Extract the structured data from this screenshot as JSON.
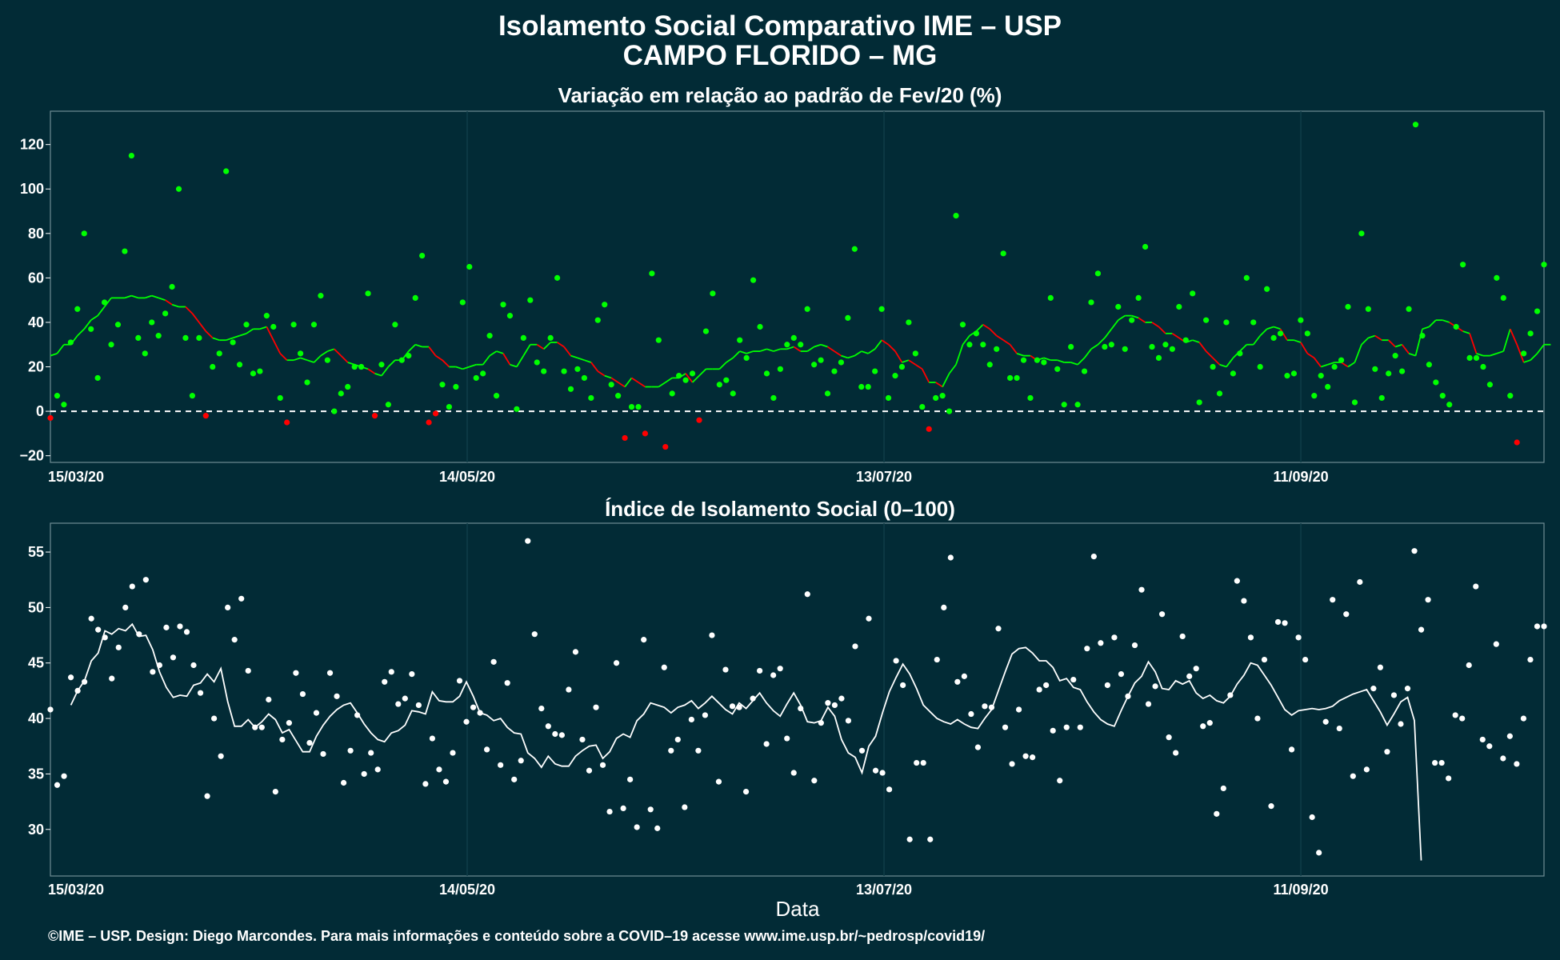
{
  "title_line1": "Isolamento Social Comparativo IME – USP",
  "title_line2": "CAMPO FLORIDO – MG",
  "xlabel": "Data",
  "footer": "©IME – USP. Design: Diego Marcondes. Para mais informações e conteúdo sobre a COVID–19 acesse www.ime.usp.br/~pedrosp/covid19/",
  "colors": {
    "background": "#022b36",
    "positive": "#00ff00",
    "negative": "#ff0000",
    "index": "#ffffff"
  },
  "chart_data": [
    {
      "type": "scatter",
      "title": "Variação em relação ao padrão de Fev/20 (%)",
      "x_start": "15/03/20",
      "x_end": "16/10/20",
      "x_ticks": [
        "15/03/20",
        "14/05/20",
        "13/07/20",
        "11/09/20"
      ],
      "ylim": [
        -23,
        135
      ],
      "y_ticks": [
        -20,
        0,
        20,
        40,
        60,
        80,
        100,
        120
      ],
      "reference_line": 0,
      "grid": true,
      "series": [
        {
          "kind": "points",
          "values": [
            -3,
            7,
            3,
            31,
            46,
            80,
            37,
            15,
            49,
            30,
            39,
            72,
            115,
            33,
            26,
            40,
            34,
            44,
            56,
            100,
            33,
            7,
            33,
            -2,
            20,
            26,
            108,
            31,
            21,
            39,
            17,
            18,
            43,
            38,
            6,
            -5,
            39,
            26,
            13,
            39,
            52,
            23,
            0,
            8,
            11,
            20,
            20,
            53,
            -2,
            21,
            3,
            39,
            23,
            25,
            51,
            70,
            -5,
            -1,
            12,
            2,
            11,
            49,
            65,
            15,
            17,
            34,
            7,
            48,
            43,
            1,
            33,
            50,
            22,
            18,
            33,
            60,
            18,
            10,
            19,
            15,
            6,
            41,
            48,
            12,
            7,
            -12,
            2,
            2,
            -10,
            62,
            32,
            -16,
            8,
            16,
            14,
            17,
            -4,
            36,
            53,
            12,
            14,
            8,
            32,
            24,
            59,
            38,
            17,
            6,
            19,
            30,
            33,
            30,
            46,
            21,
            23,
            8,
            18,
            22,
            42,
            73,
            11,
            11,
            18,
            46,
            6,
            16,
            20,
            40,
            26,
            2,
            -8,
            6,
            7,
            0,
            88,
            39,
            30,
            35,
            30,
            21,
            28,
            71,
            15,
            15,
            23,
            6,
            23,
            22,
            51,
            19,
            3,
            29,
            3,
            18,
            49,
            62,
            29,
            30,
            47,
            28,
            41,
            51,
            74,
            29,
            24,
            30,
            28,
            47,
            32,
            53,
            4,
            41,
            20,
            8,
            40,
            17,
            26,
            60,
            40,
            20,
            55,
            33,
            35,
            16,
            17,
            41,
            35,
            7,
            16,
            11,
            20,
            23,
            47,
            4,
            80,
            46,
            19,
            6,
            17,
            25,
            18,
            46,
            129,
            34,
            21,
            13,
            7,
            3,
            38,
            66,
            24,
            24,
            20,
            12,
            60,
            51,
            7,
            -14,
            26,
            35,
            45,
            66
          ]
        },
        {
          "kind": "moving_average",
          "values": [
            25,
            26,
            30,
            30,
            34,
            37,
            41,
            43,
            47,
            51,
            51,
            51,
            52,
            51,
            51,
            52,
            51,
            50,
            48,
            47,
            47,
            44,
            40,
            36,
            33,
            32,
            32,
            33,
            34,
            35,
            37,
            37,
            38,
            32,
            26,
            23,
            23,
            24,
            23,
            22,
            25,
            27,
            28,
            25,
            22,
            21,
            20,
            19,
            17,
            16,
            20,
            23,
            23,
            27,
            30,
            29,
            29,
            25,
            23,
            20,
            20,
            19,
            20,
            21,
            21,
            25,
            27,
            26,
            21,
            20,
            25,
            30,
            30,
            28,
            31,
            31,
            29,
            25,
            24,
            23,
            22,
            18,
            16,
            15,
            13,
            11,
            15,
            13,
            11,
            11,
            11,
            13,
            15,
            15,
            17,
            13,
            16,
            19,
            19,
            19,
            22,
            24,
            27,
            26,
            27,
            27,
            28,
            27,
            28,
            28,
            29,
            27,
            27,
            29,
            30,
            29,
            27,
            25,
            24,
            25,
            27,
            26,
            28,
            32,
            30,
            27,
            22,
            23,
            21,
            19,
            13,
            13,
            11,
            17,
            21,
            30,
            34,
            36,
            39,
            37,
            34,
            32,
            30,
            26,
            25,
            25,
            23,
            24,
            23,
            23,
            22,
            22,
            21,
            24,
            28,
            30,
            33,
            37,
            41,
            43,
            43,
            42,
            40,
            40,
            38,
            35,
            35,
            33,
            31,
            32,
            31,
            27,
            24,
            21,
            20,
            24,
            27,
            30,
            30,
            34,
            37,
            38,
            37,
            32,
            32,
            31,
            26,
            24,
            20,
            21,
            22,
            22,
            20,
            22,
            30,
            33,
            34,
            32,
            32,
            29,
            30,
            26,
            25,
            37,
            38,
            41,
            41,
            40,
            38,
            36,
            35,
            26,
            25,
            25,
            26,
            27,
            37,
            30,
            22,
            23,
            26,
            30,
            30
          ]
        }
      ]
    },
    {
      "type": "scatter",
      "title": "Índice de Isolamento Social (0–100)",
      "x_start": "15/03/20",
      "x_end": "16/10/20",
      "x_ticks": [
        "15/03/20",
        "14/05/20",
        "13/07/20",
        "11/09/20"
      ],
      "ylim": [
        25.8,
        57.6
      ],
      "y_ticks": [
        30,
        35,
        40,
        45,
        50,
        55
      ],
      "grid": true,
      "series": [
        {
          "kind": "points",
          "values": [
            40.8,
            34,
            34.8,
            43.7,
            42.5,
            43.3,
            49,
            48,
            47.3,
            43.6,
            46.4,
            50,
            51.9,
            47.6,
            52.5,
            44.2,
            44.8,
            48.2,
            45.5,
            48.3,
            47.8,
            44.8,
            42.3,
            33,
            40,
            36.6,
            50,
            47.1,
            50.8,
            44.3,
            39.2,
            39.2,
            41.7,
            33.4,
            38.1,
            39.6,
            44.1,
            42.2,
            37.8,
            40.5,
            36.8,
            44.1,
            42,
            34.2,
            37.1,
            40.3,
            35,
            36.9,
            35.4,
            43.3,
            44.2,
            41.3,
            41.8,
            44,
            41.2,
            34.1,
            38.2,
            35.4,
            34.3,
            36.9,
            43.4,
            39.7,
            41,
            40.5,
            37.2,
            45.1,
            35.8,
            43.2,
            34.5,
            36.2,
            56,
            47.6,
            40.9,
            39.3,
            38.6,
            38.5,
            42.6,
            46,
            38.1,
            35.3,
            41,
            35.8,
            31.6,
            45,
            31.9,
            34.5,
            30.2,
            47.1,
            31.8,
            30.1,
            44.6,
            37.1,
            38.1,
            32,
            39.9,
            37.1,
            40.3,
            47.5,
            34.3,
            44.4,
            41.1,
            41,
            33.4,
            41.8,
            44.3,
            37.7,
            43.9,
            44.5,
            38.2,
            35.1,
            40.9,
            51.2,
            34.4,
            39.6,
            41.4,
            41.2,
            41.8,
            39.8,
            46.5,
            37.1,
            49,
            35.3,
            35.1,
            33.6,
            45.2,
            43,
            29.1,
            36,
            36,
            29.1,
            45.3,
            50,
            54.5,
            43.3,
            43.8,
            40.4,
            37.4,
            41.1,
            41,
            48.1,
            39.2,
            35.9,
            40.8,
            36.6,
            36.5,
            42.6,
            43,
            38.9,
            34.4,
            39.2,
            43.5,
            39.2,
            46.3,
            54.6,
            46.8,
            43,
            47.3,
            44,
            42,
            46.6,
            51.6,
            41.3,
            42.9,
            49.4,
            38.3,
            36.9,
            47.4,
            43.8,
            44.5,
            39.3,
            39.6,
            31.4,
            33.7,
            42.1,
            52.4,
            50.6,
            47.3,
            40,
            45.3,
            32.1,
            48.7,
            48.6,
            37.2,
            47.3,
            45.3,
            31.1,
            27.9,
            39.7,
            50.7,
            39.1,
            49.4,
            34.8,
            52.3,
            35.4,
            42.7,
            44.6,
            37,
            42.1,
            39.5,
            42.7,
            55.1,
            48,
            50.7,
            36,
            36,
            34.6,
            40.3,
            40,
            44.8,
            51.9,
            38.1,
            37.5,
            46.7,
            36.4,
            38.4,
            35.9,
            40,
            45.3,
            48.3,
            48.3
          ]
        },
        {
          "kind": "moving_average",
          "values": [
            null,
            null,
            null,
            41.2,
            42.5,
            43.4,
            45.2,
            45.9,
            47.9,
            47.6,
            48.1,
            47.9,
            48.5,
            47.4,
            47.5,
            46.2,
            44.2,
            42.8,
            41.9,
            42.1,
            42.0,
            43.0,
            43.2,
            44.0,
            43.3,
            44.5,
            41.5,
            39.3,
            39.3,
            39.9,
            39.2,
            39.7,
            40.4,
            39.9,
            38.7,
            39.0,
            38.0,
            37.0,
            37.0,
            38.4,
            39.4,
            40.2,
            40.8,
            41.2,
            41.4,
            40.5,
            39.5,
            38.7,
            38.1,
            37.9,
            38.7,
            38.9,
            39.4,
            40.7,
            40.6,
            40.4,
            42.4,
            41.6,
            41.5,
            41.5,
            42.0,
            43.3,
            42.0,
            40.5,
            40.3,
            39.8,
            40.0,
            39.2,
            38.7,
            38.6,
            36.9,
            36.4,
            35.6,
            36.6,
            35.9,
            35.7,
            35.7,
            36.6,
            37.1,
            37.5,
            37.6,
            36.4,
            37.0,
            38.2,
            38.6,
            38.3,
            39.8,
            40.4,
            41.4,
            41.2,
            41.0,
            40.5,
            41.0,
            41.2,
            41.6,
            40.9,
            41.4,
            42.0,
            41.4,
            40.8,
            40.4,
            41.4,
            40.9,
            41.6,
            42.3,
            41.4,
            40.7,
            40.2,
            41.3,
            42.3,
            41.2,
            39.7,
            39.6,
            39.8,
            41.0,
            40.2,
            38.1,
            36.9,
            36.5,
            35.1,
            37.5,
            38.4,
            40.5,
            42.4,
            43.7,
            44.9,
            44.0,
            42.7,
            41.2,
            40.6,
            40.0,
            39.7,
            39.5,
            39.9,
            39.5,
            39.2,
            39.1,
            40.0,
            40.8,
            42.5,
            44.2,
            45.8,
            46.3,
            46.4,
            45.9,
            45.2,
            45.2,
            44.6,
            43.4,
            43.6,
            42.8,
            42.6,
            41.5,
            40.6,
            39.9,
            39.5,
            39.3,
            40.7,
            42.0,
            43.2,
            43.8,
            45.1,
            44.2,
            42.7,
            42.6,
            43.4,
            43.1,
            43.4,
            42.3,
            41.8,
            42.1,
            41.6,
            41.4,
            42.0,
            43.1,
            43.9,
            45.0,
            44.8,
            43.9,
            43.0,
            41.9,
            40.8,
            40.3,
            40.7,
            40.8,
            40.9,
            40.8,
            40.9,
            41.1,
            41.6,
            41.9,
            42.2,
            42.4,
            42.6,
            41.6,
            40.6,
            39.4,
            40.4,
            41.5,
            41.9,
            39.8,
            27.2
          ]
        }
      ]
    }
  ]
}
